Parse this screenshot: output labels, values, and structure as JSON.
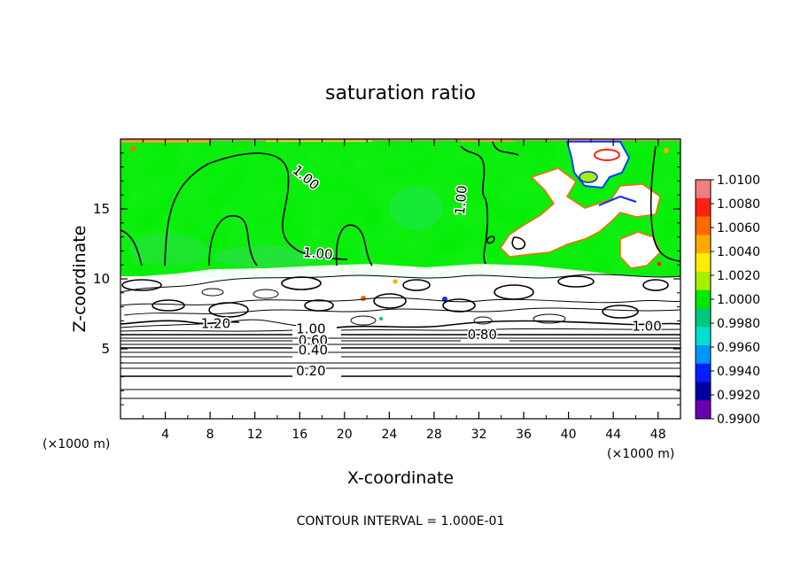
{
  "chart_data": {
    "type": "heatmap",
    "title": "saturation ratio",
    "xlabel": "X-coordinate",
    "ylabel": "Z-coordinate",
    "x_unit": "(×1000 m)",
    "z_unit": "(×1000 m)",
    "xlim": [
      0,
      50
    ],
    "ylim": [
      0,
      20
    ],
    "x_ticks": [
      4,
      8,
      12,
      16,
      20,
      24,
      28,
      32,
      36,
      40,
      44,
      48
    ],
    "y_ticks": [
      5,
      10,
      15
    ],
    "footer": "CONTOUR INTERVAL = 1.000E-01",
    "contour_interval": 0.1,
    "colorbar": {
      "min": 0.99,
      "max": 1.01,
      "labels": [
        "1.0100",
        "1.0080",
        "1.0060",
        "1.0040",
        "1.0020",
        "1.0000",
        "0.9980",
        "0.9960",
        "0.9940",
        "0.9920",
        "0.9900"
      ],
      "colors": [
        "#f08080",
        "#ff2010",
        "#ff6a00",
        "#ffaa00",
        "#ffee00",
        "#a6f000",
        "#00e800",
        "#00c878",
        "#00e0d0",
        "#0096ff",
        "#0020ff",
        "#0000a0",
        "#6a00b0"
      ]
    },
    "contour_labels": [
      {
        "text": "1.00",
        "x": 16.3,
        "y": 17.0,
        "rotate": 40
      },
      {
        "text": "1.00",
        "x": 30.8,
        "y": 15.6,
        "rotate": -85
      },
      {
        "text": "1.00",
        "x": 17.6,
        "y": 11.5,
        "rotate": 5
      },
      {
        "text": "1.20",
        "x": 8.5,
        "y": 6.5,
        "rotate": 0
      },
      {
        "text": "1.00",
        "x": 17.0,
        "y": 6.1,
        "rotate": 0
      },
      {
        "text": "0.60",
        "x": 17.2,
        "y": 5.3,
        "rotate": 0
      },
      {
        "text": "0.40",
        "x": 17.2,
        "y": 4.6,
        "rotate": 0
      },
      {
        "text": "0.80",
        "x": 32.3,
        "y": 5.7,
        "rotate": 0
      },
      {
        "text": "1.00",
        "x": 47.0,
        "y": 6.3,
        "rotate": 0
      },
      {
        "text": "0.20",
        "x": 17.0,
        "y": 3.1,
        "rotate": 0
      }
    ]
  }
}
